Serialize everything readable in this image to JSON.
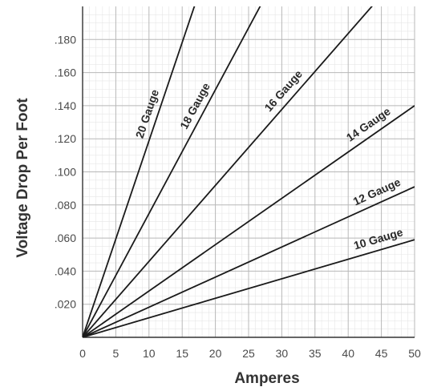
{
  "chart_data": {
    "type": "line",
    "xlabel": "Amperes",
    "ylabel": "Voltage Drop Per Foot",
    "xlim": [
      0,
      50
    ],
    "ylim": [
      0,
      0.2
    ],
    "grid": true,
    "x_ticks": [
      0,
      5,
      10,
      15,
      20,
      25,
      30,
      35,
      40,
      45,
      50
    ],
    "x_tick_labels": [
      "0",
      "5",
      "10",
      "15",
      "20",
      "25",
      "30",
      "35",
      "40",
      "45",
      "50"
    ],
    "y_ticks": [
      0.02,
      0.04,
      0.06,
      0.08,
      0.1,
      0.12,
      0.14,
      0.16,
      0.18
    ],
    "y_tick_labels": [
      ".020",
      ".040",
      ".060",
      ".080",
      ".100",
      ".120",
      ".140",
      ".160",
      ".180"
    ],
    "series": [
      {
        "name": "20 Gauge",
        "x": [
          0,
          17
        ],
        "y": [
          0,
          0.202
        ]
      },
      {
        "name": "18 Gauge",
        "x": [
          0,
          27
        ],
        "y": [
          0,
          0.202
        ]
      },
      {
        "name": "16 Gauge",
        "x": [
          0,
          44
        ],
        "y": [
          0,
          0.202
        ]
      },
      {
        "name": "14 Gauge",
        "x": [
          0,
          50
        ],
        "y": [
          0,
          0.14
        ]
      },
      {
        "name": "12 Gauge",
        "x": [
          0,
          50
        ],
        "y": [
          0,
          0.091
        ]
      },
      {
        "name": "10 Gauge",
        "x": [
          0,
          50
        ],
        "y": [
          0,
          0.059
        ]
      }
    ]
  }
}
